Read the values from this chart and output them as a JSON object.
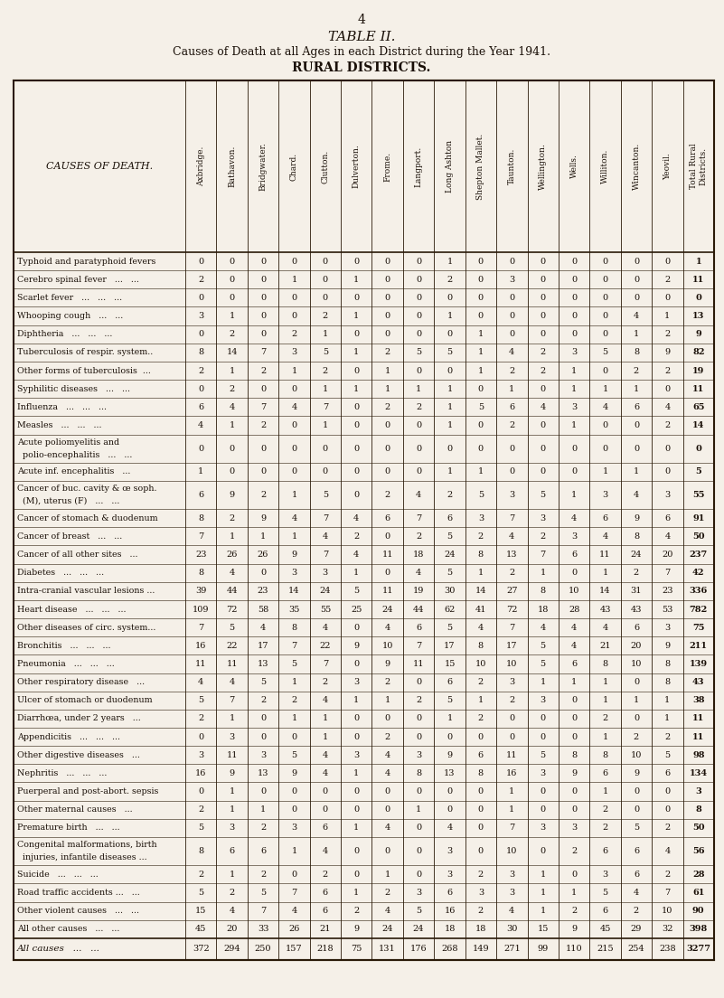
{
  "page_number": "4",
  "title": "TABLE II.",
  "subtitle": "Causes of Death at all Ages in each District during the Year 1941.",
  "section": "RURAL DISTRICTS.",
  "col_headers_rotated": [
    "Axbridge.",
    "Bathavon.",
    "Bridgwater.",
    "Chard.",
    "Clutton.",
    "Dulverton.",
    "Frome.",
    "Langport.",
    "Long Ashton",
    "Shepton Mallet.",
    "Taunton.",
    "Wellington.",
    "Wells.",
    "Williton.",
    "Wincanton.",
    "Yeovil.",
    "Total Rural\nDistricts."
  ],
  "rows": [
    [
      "Typhoid and paratyphoid fevers",
      "0",
      "0",
      "0",
      "0",
      "0",
      "0",
      "0",
      "0",
      "1",
      "0",
      "0",
      "0",
      "0",
      "0",
      "0",
      "0",
      "1"
    ],
    [
      "Cerebro spinal fever   ...   ...",
      "2",
      "0",
      "0",
      "1",
      "0",
      "1",
      "0",
      "0",
      "2",
      "0",
      "3",
      "0",
      "0",
      "0",
      "0",
      "2",
      "11"
    ],
    [
      "Scarlet fever   ...   ...   ...",
      "0",
      "0",
      "0",
      "0",
      "0",
      "0",
      "0",
      "0",
      "0",
      "0",
      "0",
      "0",
      "0",
      "0",
      "0",
      "0",
      "0"
    ],
    [
      "Whooping cough   ...   ...",
      "3",
      "1",
      "0",
      "0",
      "2",
      "1",
      "0",
      "0",
      "1",
      "0",
      "0",
      "0",
      "0",
      "0",
      "4",
      "1",
      "13"
    ],
    [
      "Diphtheria   ...   ...   ...",
      "0",
      "2",
      "0",
      "2",
      "1",
      "0",
      "0",
      "0",
      "0",
      "1",
      "0",
      "0",
      "0",
      "0",
      "1",
      "2",
      "9"
    ],
    [
      "Tuberculosis of respir. system..",
      "8",
      "14",
      "7",
      "3",
      "5",
      "1",
      "2",
      "5",
      "5",
      "1",
      "4",
      "2",
      "3",
      "5",
      "8",
      "9",
      "82"
    ],
    [
      "Other forms of tuberculosis  ...",
      "2",
      "1",
      "2",
      "1",
      "2",
      "0",
      "1",
      "0",
      "0",
      "1",
      "2",
      "2",
      "1",
      "0",
      "2",
      "2",
      "19"
    ],
    [
      "Syphilitic diseases   ...   ...",
      "0",
      "2",
      "0",
      "0",
      "1",
      "1",
      "1",
      "1",
      "1",
      "0",
      "1",
      "0",
      "1",
      "1",
      "1",
      "0",
      "11"
    ],
    [
      "Influenza   ...   ...   ...",
      "6",
      "4",
      "7",
      "4",
      "7",
      "0",
      "2",
      "2",
      "1",
      "5",
      "6",
      "4",
      "3",
      "4",
      "6",
      "4",
      "65"
    ],
    [
      "Measles   ...   ...   ...",
      "4",
      "1",
      "2",
      "0",
      "1",
      "0",
      "0",
      "0",
      "1",
      "0",
      "2",
      "0",
      "1",
      "0",
      "0",
      "2",
      "14"
    ],
    [
      "Acute poliomyelitis and\npolio-encephalitis   ...   ...",
      "0",
      "0",
      "0",
      "0",
      "0",
      "0",
      "0",
      "0",
      "0",
      "0",
      "0",
      "0",
      "0",
      "0",
      "0",
      "0",
      "0"
    ],
    [
      "Acute inf. encephalitis   ...",
      "1",
      "0",
      "0",
      "0",
      "0",
      "0",
      "0",
      "0",
      "1",
      "1",
      "0",
      "0",
      "0",
      "1",
      "1",
      "0",
      "5"
    ],
    [
      "Cancer of buc. cavity & œ soph.\n(M), uterus (F)   ...   ...",
      "6",
      "9",
      "2",
      "1",
      "5",
      "0",
      "2",
      "4",
      "2",
      "5",
      "3",
      "5",
      "1",
      "3",
      "4",
      "3",
      "55"
    ],
    [
      "Cancer of stomach & duodenum",
      "8",
      "2",
      "9",
      "4",
      "7",
      "4",
      "6",
      "7",
      "6",
      "3",
      "7",
      "3",
      "4",
      "6",
      "9",
      "6",
      "91"
    ],
    [
      "Cancer of breast   ...   ...",
      "7",
      "1",
      "1",
      "1",
      "4",
      "2",
      "0",
      "2",
      "5",
      "2",
      "4",
      "2",
      "3",
      "4",
      "8",
      "4",
      "50"
    ],
    [
      "Cancer of all other sites   ...",
      "23",
      "26",
      "26",
      "9",
      "7",
      "4",
      "11",
      "18",
      "24",
      "8",
      "13",
      "7",
      "6",
      "11",
      "24",
      "20",
      "237"
    ],
    [
      "Diabetes   ...   ...   ...",
      "8",
      "4",
      "0",
      "3",
      "3",
      "1",
      "0",
      "4",
      "5",
      "1",
      "2",
      "1",
      "0",
      "1",
      "2",
      "7",
      "42"
    ],
    [
      "Intra-cranial vascular lesions ...",
      "39",
      "44",
      "23",
      "14",
      "24",
      "5",
      "11",
      "19",
      "30",
      "14",
      "27",
      "8",
      "10",
      "14",
      "31",
      "23",
      "336"
    ],
    [
      "Heart disease   ...   ...   ...",
      "109",
      "72",
      "58",
      "35",
      "55",
      "25",
      "24",
      "44",
      "62",
      "41",
      "72",
      "18",
      "28",
      "43",
      "43",
      "53",
      "782"
    ],
    [
      "Other diseases of circ. system...",
      "7",
      "5",
      "4",
      "8",
      "4",
      "0",
      "4",
      "6",
      "5",
      "4",
      "7",
      "4",
      "4",
      "4",
      "6",
      "3",
      "75"
    ],
    [
      "Bronchitis   ...   ...   ...",
      "16",
      "22",
      "17",
      "7",
      "22",
      "9",
      "10",
      "7",
      "17",
      "8",
      "17",
      "5",
      "4",
      "21",
      "20",
      "9",
      "211"
    ],
    [
      "Pneumonia   ...   ...   ...",
      "11",
      "11",
      "13",
      "5",
      "7",
      "0",
      "9",
      "11",
      "15",
      "10",
      "10",
      "5",
      "6",
      "8",
      "10",
      "8",
      "139"
    ],
    [
      "Other respiratory disease   ...",
      "4",
      "4",
      "5",
      "1",
      "2",
      "3",
      "2",
      "0",
      "6",
      "2",
      "3",
      "1",
      "1",
      "1",
      "0",
      "8",
      "43"
    ],
    [
      "Ulcer of stomach or duodenum",
      "5",
      "7",
      "2",
      "2",
      "4",
      "1",
      "1",
      "2",
      "5",
      "1",
      "2",
      "3",
      "0",
      "1",
      "1",
      "1",
      "38"
    ],
    [
      "Diarrhœa, under 2 years   ...",
      "2",
      "1",
      "0",
      "1",
      "1",
      "0",
      "0",
      "0",
      "1",
      "2",
      "0",
      "0",
      "0",
      "2",
      "0",
      "1",
      "11"
    ],
    [
      "Appendicitis   ...   ...   ...",
      "0",
      "3",
      "0",
      "0",
      "1",
      "0",
      "2",
      "0",
      "0",
      "0",
      "0",
      "0",
      "0",
      "1",
      "2",
      "2",
      "11"
    ],
    [
      "Other digestive diseases   ...",
      "3",
      "11",
      "3",
      "5",
      "4",
      "3",
      "4",
      "3",
      "9",
      "6",
      "11",
      "5",
      "8",
      "8",
      "10",
      "5",
      "98"
    ],
    [
      "Nephritis   ...   ...   ...",
      "16",
      "9",
      "13",
      "9",
      "4",
      "1",
      "4",
      "8",
      "13",
      "8",
      "16",
      "3",
      "9",
      "6",
      "9",
      "6",
      "134"
    ],
    [
      "Puerperal and post-abort. sepsis",
      "0",
      "1",
      "0",
      "0",
      "0",
      "0",
      "0",
      "0",
      "0",
      "0",
      "1",
      "0",
      "0",
      "1",
      "0",
      "0",
      "3"
    ],
    [
      "Other maternal causes   ...",
      "2",
      "1",
      "1",
      "0",
      "0",
      "0",
      "0",
      "1",
      "0",
      "0",
      "1",
      "0",
      "0",
      "2",
      "0",
      "0",
      "8"
    ],
    [
      "Premature birth   ...   ...",
      "5",
      "3",
      "2",
      "3",
      "6",
      "1",
      "4",
      "0",
      "4",
      "0",
      "7",
      "3",
      "3",
      "2",
      "5",
      "2",
      "50"
    ],
    [
      "Congenital malformations, birth\ninjuries, infantile diseases ...",
      "8",
      "6",
      "6",
      "1",
      "4",
      "0",
      "0",
      "0",
      "3",
      "0",
      "10",
      "0",
      "2",
      "6",
      "6",
      "4",
      "56"
    ],
    [
      "Suicide   ...   ...   ...",
      "2",
      "1",
      "2",
      "0",
      "2",
      "0",
      "1",
      "0",
      "3",
      "2",
      "3",
      "1",
      "0",
      "3",
      "6",
      "2",
      "28"
    ],
    [
      "Road traffic accidents ...   ...",
      "5",
      "2",
      "5",
      "7",
      "6",
      "1",
      "2",
      "3",
      "6",
      "3",
      "3",
      "1",
      "1",
      "5",
      "4",
      "7",
      "61"
    ],
    [
      "Other violent causes   ...   ...",
      "15",
      "4",
      "7",
      "4",
      "6",
      "2",
      "4",
      "5",
      "16",
      "2",
      "4",
      "1",
      "2",
      "6",
      "2",
      "10",
      "90"
    ],
    [
      "All other causes   ...   ...",
      "45",
      "20",
      "33",
      "26",
      "21",
      "9",
      "24",
      "24",
      "18",
      "18",
      "30",
      "15",
      "9",
      "45",
      "29",
      "32",
      "398"
    ]
  ],
  "total_row": [
    "All causes   ...   ...",
    "372",
    "294",
    "250",
    "157",
    "218",
    "75",
    "131",
    "176",
    "268",
    "149",
    "271",
    "99",
    "110",
    "215",
    "254",
    "238",
    "3277"
  ],
  "bg_color": "#f5f0e8",
  "text_color": "#1a1008",
  "line_color": "#2a1a08"
}
